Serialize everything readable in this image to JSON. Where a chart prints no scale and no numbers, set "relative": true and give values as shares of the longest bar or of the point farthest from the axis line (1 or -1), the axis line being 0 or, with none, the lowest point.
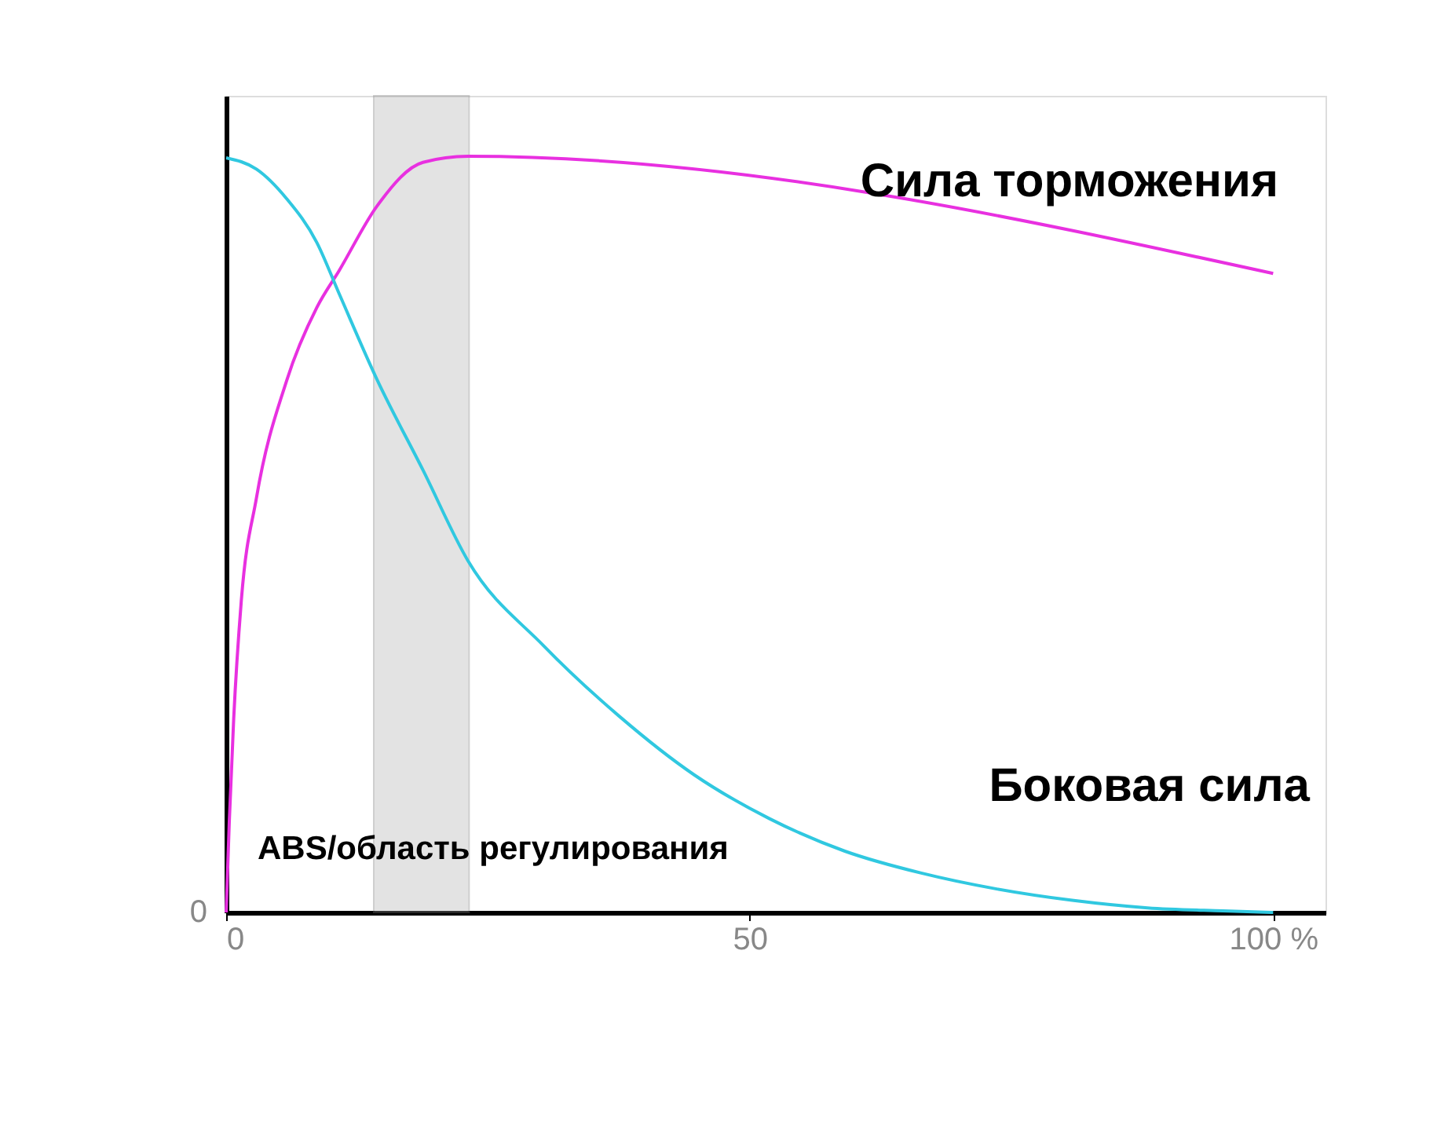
{
  "chart_data": {
    "type": "line",
    "relative": true,
    "grid": false,
    "marker": "none",
    "line_style": "solid",
    "xlim": [
      0,
      105
    ],
    "xticks": [
      0,
      50,
      {
        "value": 100,
        "label": "100 %"
      }
    ],
    "series": [
      {
        "name": "Сила торможения",
        "color": "#e830e0",
        "x": [
          0,
          0.3,
          0.72,
          1.44,
          2.89,
          5.77,
          8.66,
          10.8,
          14.4,
          18.8,
          23.1,
          100
        ],
        "values": [
          0,
          0.12,
          0.256,
          0.411,
          0.548,
          0.703,
          0.8,
          0.849,
          0.934,
          0.992,
          1.0,
          0.845
        ]
      },
      {
        "name": "Боковая сила",
        "color": "#30c8e0",
        "x": [
          0,
          2.89,
          5.77,
          8.66,
          10.8,
          14.4,
          18.8,
          23.1,
          30.3,
          37.5,
          44.7,
          51.9,
          59.1,
          66.4,
          73.6,
          80.8,
          88.0,
          95.2,
          100
        ],
        "values": [
          0.998,
          0.983,
          0.944,
          0.886,
          0.818,
          0.705,
          0.585,
          0.465,
          0.353,
          0.26,
          0.182,
          0.124,
          0.081,
          0.052,
          0.031,
          0.016,
          0.006,
          0.002,
          0
        ]
      }
    ],
    "bands": [
      {
        "axis": "x",
        "from": 14.1,
        "to": 23.2,
        "label": "ABS/область регулирования",
        "color": "#b0b0b0"
      }
    ],
    "annotations": [
      "0"
    ]
  }
}
